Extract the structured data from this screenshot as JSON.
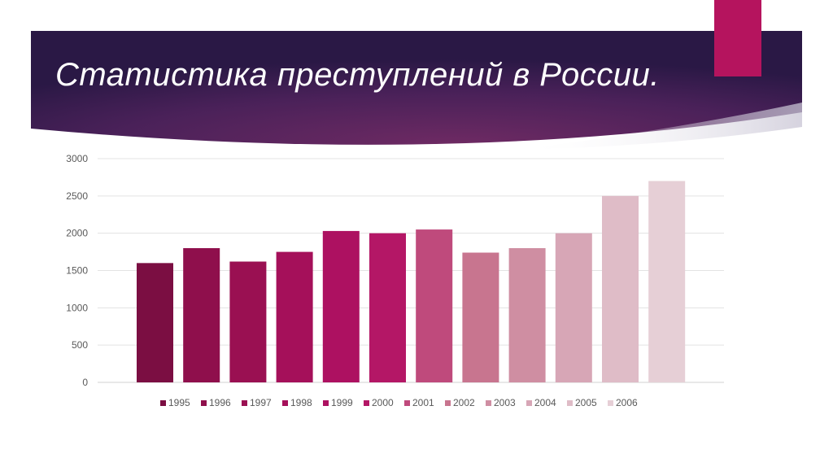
{
  "slide": {
    "title": "Статистика преступлений в России.",
    "accent_color": "#b5145e",
    "banner_colors": [
      "#2a1845",
      "#6e2a63",
      "#3a1f55"
    ]
  },
  "chart_data": {
    "type": "bar",
    "title": "",
    "xlabel": "",
    "ylabel": "",
    "ylim": [
      0,
      3000
    ],
    "yticks": [
      0,
      500,
      1000,
      1500,
      2000,
      2500,
      3000
    ],
    "grid": true,
    "legend_position": "bottom",
    "series": [
      {
        "name": "1995",
        "value": 1600,
        "color": "#7b0e42"
      },
      {
        "name": "1996",
        "value": 1800,
        "color": "#8f0f4c"
      },
      {
        "name": "1997",
        "value": 1620,
        "color": "#9a1052"
      },
      {
        "name": "1998",
        "value": 1750,
        "color": "#a5105a"
      },
      {
        "name": "1999",
        "value": 2030,
        "color": "#ad1161"
      },
      {
        "name": "2000",
        "value": 2000,
        "color": "#b41766"
      },
      {
        "name": "2001",
        "value": 2050,
        "color": "#bf4a7c"
      },
      {
        "name": "2002",
        "value": 1740,
        "color": "#c8758f"
      },
      {
        "name": "2003",
        "value": 1800,
        "color": "#cf8ea2"
      },
      {
        "name": "2004",
        "value": 2000,
        "color": "#d7a6b6"
      },
      {
        "name": "2005",
        "value": 2500,
        "color": "#dfbcc7"
      },
      {
        "name": "2006",
        "value": 2700,
        "color": "#e6cfd6"
      }
    ]
  }
}
